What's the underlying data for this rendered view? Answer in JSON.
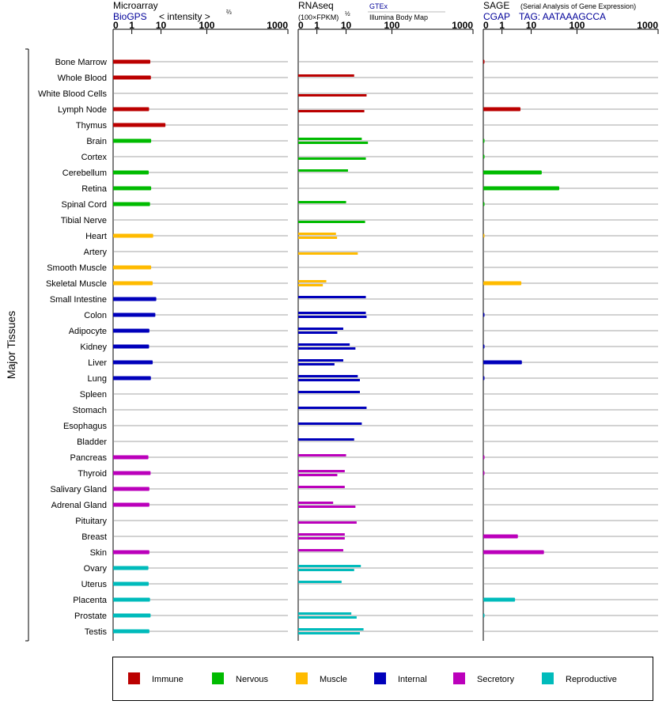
{
  "chart_data": {
    "type": "bar",
    "y_axis_label": "Major Tissues",
    "tissues": [
      "Bone Marrow",
      "Whole Blood",
      "White Blood Cells",
      "Lymph Node",
      "Thymus",
      "Brain",
      "Cortex",
      "Cerebellum",
      "Retina",
      "Spinal Cord",
      "Tibial Nerve",
      "Heart",
      "Artery",
      "Smooth Muscle",
      "Skeletal Muscle",
      "Small Intestine",
      "Colon",
      "Adipocyte",
      "Kidney",
      "Liver",
      "Lung",
      "Spleen",
      "Stomach",
      "Esophagus",
      "Bladder",
      "Pancreas",
      "Thyroid",
      "Salivary Gland",
      "Adrenal Gland",
      "Pituitary",
      "Breast",
      "Skin",
      "Ovary",
      "Uterus",
      "Placenta",
      "Prostate",
      "Testis"
    ],
    "tissue_groups": [
      "Immune",
      "Immune",
      "Immune",
      "Immune",
      "Immune",
      "Nervous",
      "Nervous",
      "Nervous",
      "Nervous",
      "Nervous",
      "Nervous",
      "Muscle",
      "Muscle",
      "Muscle",
      "Muscle",
      "Internal",
      "Internal",
      "Internal",
      "Internal",
      "Internal",
      "Internal",
      "Internal",
      "Internal",
      "Internal",
      "Internal",
      "Secretory",
      "Secretory",
      "Secretory",
      "Secretory",
      "Secretory",
      "Secretory",
      "Secretory",
      "Reproductive",
      "Reproductive",
      "Reproductive",
      "Reproductive",
      "Reproductive"
    ],
    "panels": [
      {
        "id": "microarray",
        "title": "Microarray",
        "title_sub": "",
        "source_label": "BioGPS",
        "extra_label": "< intensity >",
        "extra_sup": "⅔",
        "tick_labels": [
          "0",
          "1",
          "10",
          "100",
          "1000"
        ],
        "ticks": [
          0,
          1,
          10,
          100,
          1000
        ],
        "xlim": [
          0,
          1000
        ],
        "values": [
          [
            4.3
          ],
          [
            4.5
          ],
          [
            null
          ],
          [
            3.9
          ],
          [
            12.5
          ],
          [
            4.6
          ],
          [
            null
          ],
          [
            3.8
          ],
          [
            4.6
          ],
          [
            4.2
          ],
          [
            null
          ],
          [
            5.4
          ],
          [
            null
          ],
          [
            4.6
          ],
          [
            5.2
          ],
          [
            6.9
          ],
          [
            6.4
          ],
          [
            4.0
          ],
          [
            3.9
          ],
          [
            5.2
          ],
          [
            4.5
          ],
          [
            null
          ],
          [
            null
          ],
          [
            null
          ],
          [
            null
          ],
          [
            3.7
          ],
          [
            4.4
          ],
          [
            4.0
          ],
          [
            4.0
          ],
          [
            null
          ],
          [
            null
          ],
          [
            4.0
          ],
          [
            3.7
          ],
          [
            3.8
          ],
          [
            4.2
          ],
          [
            4.4
          ],
          [
            4.0
          ]
        ]
      },
      {
        "id": "rnaseq",
        "title": "RNAseq",
        "title_sub": "(100×FPKM)",
        "title_sup": "½",
        "source_label": "GTEx",
        "source_label_2": "Illumina Body Map",
        "tick_labels": [
          "0",
          "1",
          "10",
          "100",
          "1000"
        ],
        "ticks": [
          0,
          1,
          10,
          100,
          1000
        ],
        "xlim": [
          0,
          1000
        ],
        "values": [
          [
            null,
            null
          ],
          [
            15,
            null
          ],
          [
            null,
            28
          ],
          [
            null,
            25
          ],
          [
            null,
            null
          ],
          [
            22,
            30
          ],
          [
            null,
            27
          ],
          [
            11,
            null
          ],
          [
            null,
            null
          ],
          [
            10,
            null
          ],
          [
            null,
            26
          ],
          [
            4.5,
            4.9
          ],
          [
            null,
            18
          ],
          [
            null,
            null
          ],
          [
            2.1,
            1.6
          ],
          [
            27,
            null
          ],
          [
            27,
            28
          ],
          [
            8,
            5
          ],
          [
            12,
            16
          ],
          [
            8,
            4
          ],
          [
            18,
            20
          ],
          [
            20,
            null
          ],
          [
            28,
            null
          ],
          [
            22,
            null
          ],
          [
            15,
            null
          ],
          [
            10,
            null
          ],
          [
            9,
            5
          ],
          [
            9,
            null
          ],
          [
            3.6,
            16
          ],
          [
            null,
            17
          ],
          [
            9,
            9
          ],
          [
            8,
            null
          ],
          [
            21,
            15
          ],
          [
            7,
            null
          ],
          [
            null,
            null
          ],
          [
            13,
            17
          ],
          [
            24,
            20
          ]
        ]
      },
      {
        "id": "sage",
        "title": "SAGE",
        "title_sub": "(Serial Analysis of Gene Expression)",
        "source_label": "CGAP",
        "tag_label": "TAG: AATAAAGCCA",
        "tick_labels": [
          "0",
          "1",
          "10",
          "100",
          "1000"
        ],
        "ticks": [
          0,
          1,
          10,
          100,
          1000
        ],
        "xlim": [
          0,
          1000
        ],
        "values": [
          [
            0.05
          ],
          [
            null
          ],
          [
            null
          ],
          [
            4.3
          ],
          [
            null
          ],
          [
            0.05
          ],
          [
            0.05
          ],
          [
            17
          ],
          [
            41
          ],
          [
            0.05
          ],
          [
            null
          ],
          [
            0.02
          ],
          [
            null
          ],
          [
            null
          ],
          [
            4.6
          ],
          [
            null
          ],
          [
            0.05
          ],
          [
            null
          ],
          [
            0.05
          ],
          [
            4.8
          ],
          [
            0.05
          ],
          [
            null
          ],
          [
            null
          ],
          [
            null
          ],
          [
            null
          ],
          [
            0.05
          ],
          [
            0.05
          ],
          [
            null
          ],
          [
            null
          ],
          [
            null
          ],
          [
            3.5
          ],
          [
            19
          ],
          [
            null
          ],
          [
            null
          ],
          [
            2.8
          ],
          [
            0.05
          ],
          [
            null
          ]
        ]
      }
    ],
    "legend": [
      {
        "label": "Immune",
        "color": "#bb0000"
      },
      {
        "label": "Nervous",
        "color": "#00bb00"
      },
      {
        "label": "Muscle",
        "color": "#ffbb00"
      },
      {
        "label": "Internal",
        "color": "#0000bb"
      },
      {
        "label": "Secretory",
        "color": "#bb00bb"
      },
      {
        "label": "Reproductive",
        "color": "#00bbbb"
      }
    ]
  }
}
